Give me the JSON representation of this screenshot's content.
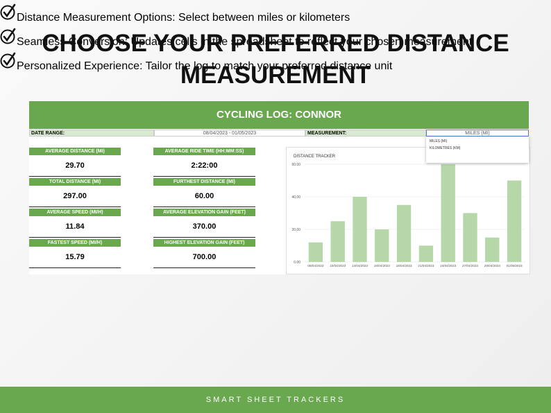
{
  "header": {
    "title": "CHOOSE YOUR PREFERRED DISTANCE MEASUREMENT"
  },
  "sheet": {
    "title": "CYCLING LOG: CONNOR",
    "date_range_label": "DATE RANGE:",
    "date_range": "08/04/2023 - 01/05/2023",
    "measurement_label": "MEASUREMENT:",
    "measurement": "MILES (MI)",
    "dropdown": [
      "MILES (MI)",
      "KILOMETRES (KM)"
    ],
    "stats": [
      {
        "label": "AVERAGE DISTANCE (MI)",
        "value": "29.70"
      },
      {
        "label": "AVERAGE RIDE TIME (HH:MM:SS)",
        "value": "2:22:00"
      },
      {
        "label": "TOTAL DISTANCE (MI)",
        "value": "297.00"
      },
      {
        "label": "FURTHEST DISTANCE (MI)",
        "value": "60.00"
      },
      {
        "label": "AVERAGE SPEED (MI/H)",
        "value": "11.84"
      },
      {
        "label": "AVERAGE ELEVATION GAIN (FEET)",
        "value": "370.00"
      },
      {
        "label": "FASTEST SPEED (MI/H)",
        "value": "15.79"
      },
      {
        "label": "HIGHEST ELEVATION GAIN (FEET)",
        "value": "700.00"
      }
    ]
  },
  "chart_data": {
    "type": "bar",
    "title": "DISTANCE TRACKER",
    "categories": [
      "08/04/2023",
      "10/04/2023",
      "14/04/2023",
      "16/04/2023",
      "18/04/2023",
      "21/04/2023",
      "24/04/2023",
      "27/04/2023",
      "29/04/2023",
      "01/05/2023"
    ],
    "values": [
      12,
      25,
      40,
      20,
      35,
      10,
      60,
      30,
      15,
      50
    ],
    "color": "#b6d7a8",
    "ylim": [
      0,
      60
    ],
    "yticks": [
      {
        "value": 0,
        "label": "0.00"
      },
      {
        "value": 20,
        "label": "20.00"
      },
      {
        "value": 40,
        "label": "40.00"
      },
      {
        "value": 60,
        "label": "60.00"
      }
    ],
    "grid": true
  },
  "bullets": [
    "Distance Measurement Options: Select between miles or kilometers",
    "Seamless Conversion: Updates cells in the spreadsheet to reflect your chosen measurement",
    "Personalized Experience: Tailor the log to match your preferred distance unit"
  ],
  "footer": {
    "text": "SMART SHEET TRACKERS"
  }
}
